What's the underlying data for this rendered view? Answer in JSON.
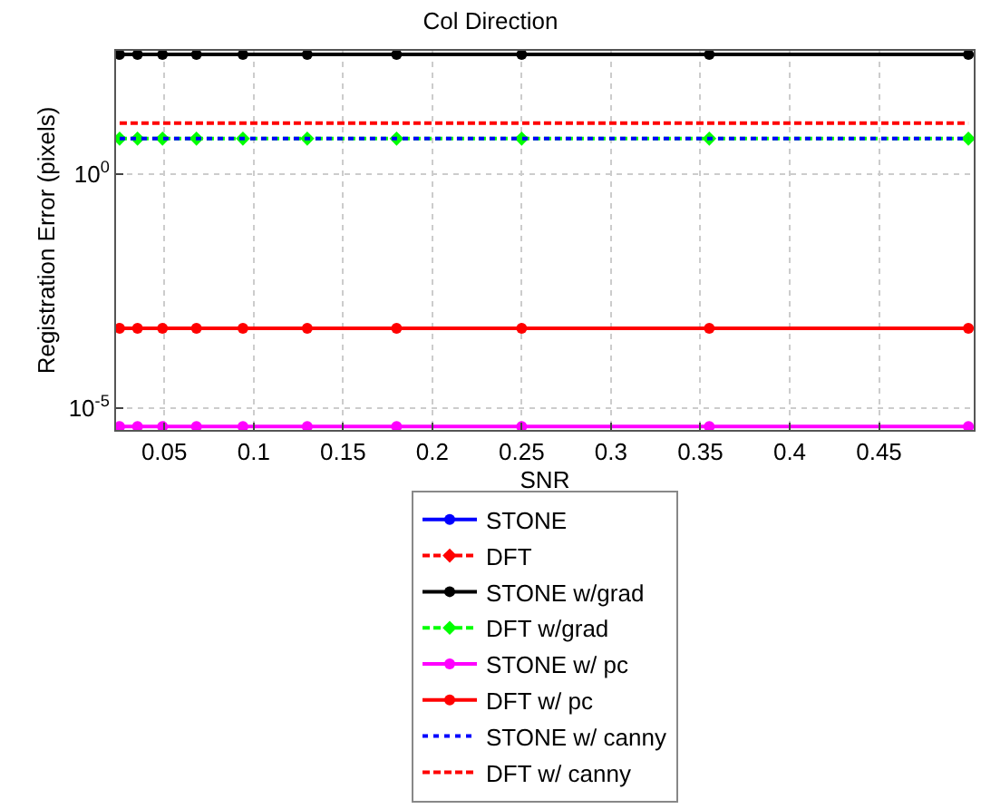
{
  "chart_data": {
    "type": "line",
    "title": "Col Direction",
    "xlabel": "SNR",
    "ylabel": "Registration Error (pixels)",
    "x": [
      0.025,
      0.035,
      0.049,
      0.068,
      0.094,
      0.13,
      0.18,
      0.25,
      0.355,
      0.5
    ],
    "series": [
      {
        "name": "STONE",
        "color": "#0000ff",
        "marker": "circle",
        "line_style": "solid",
        "values": [
          null,
          null,
          null,
          null,
          null,
          null,
          null,
          null,
          null,
          null
        ]
      },
      {
        "name": "DFT",
        "color": "#ff0000",
        "marker": "diamond",
        "line_style": "dashed",
        "values": [
          null,
          null,
          null,
          null,
          null,
          null,
          null,
          null,
          null,
          null
        ]
      },
      {
        "name": "STONE w/grad",
        "color": "#000000",
        "marker": "circle",
        "line_style": "solid",
        "values": [
          350,
          350,
          350,
          350,
          350,
          350,
          350,
          350,
          350,
          350
        ]
      },
      {
        "name": "DFT w/grad",
        "color": "#00ff00",
        "marker": "diamond",
        "line_style": "dashed",
        "values": [
          5.6,
          5.6,
          5.6,
          5.6,
          5.6,
          5.6,
          5.6,
          5.6,
          5.6,
          5.6
        ]
      },
      {
        "name": "STONE w/ pc",
        "color": "#ff00ff",
        "marker": "circle",
        "line_style": "solid",
        "values": [
          4e-06,
          4e-06,
          4e-06,
          4e-06,
          4e-06,
          4e-06,
          4e-06,
          4e-06,
          4e-06,
          4e-06
        ]
      },
      {
        "name": "DFT w/ pc",
        "color": "#ff0000",
        "marker": "circle",
        "line_style": "solid",
        "values": [
          0.0005,
          0.0005,
          0.0005,
          0.0005,
          0.0005,
          0.0005,
          0.0005,
          0.0005,
          0.0005,
          0.0005
        ]
      },
      {
        "name": "STONE w/ canny",
        "color": "#0000ff",
        "marker": "none",
        "line_style": "dotted",
        "values": [
          5.6,
          5.6,
          5.6,
          5.6,
          5.6,
          5.6,
          5.6,
          5.6,
          5.6,
          5.6
        ]
      },
      {
        "name": "DFT w/ canny",
        "color": "#ff0000",
        "marker": "none",
        "line_style": "dashed",
        "values": [
          12,
          12,
          12,
          12,
          12,
          12,
          12,
          12,
          12,
          12
        ]
      }
    ],
    "log": "y",
    "xlim": [
      0.023,
      0.503
    ],
    "ylim": [
      3.4e-06,
      420
    ],
    "xticks": [
      0.05,
      0.1,
      0.15,
      0.2,
      0.25,
      0.3,
      0.35,
      0.4,
      0.45
    ],
    "yticks": [
      {
        "value": 1,
        "label": "10$^{0}$"
      },
      {
        "value": 1e-05,
        "label": "10$^{-5}$"
      }
    ],
    "grid": true,
    "legend": "bottom"
  }
}
